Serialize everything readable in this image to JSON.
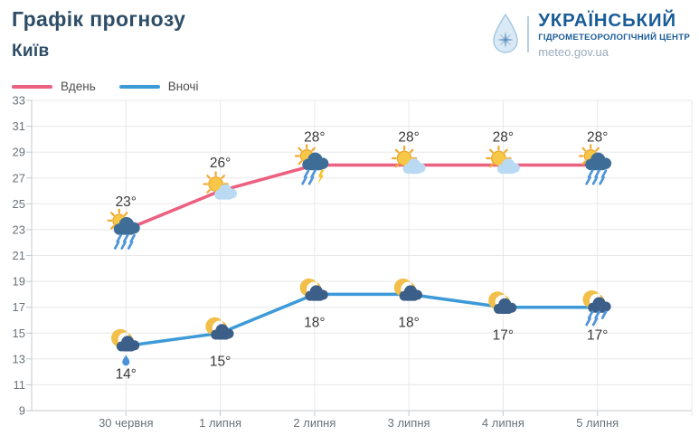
{
  "header": {
    "title": "Графік прогнозу",
    "subtitle": "Київ"
  },
  "logo": {
    "org_line1": "УКРАЇНСЬКИЙ",
    "org_line2": "ГІДРОМЕТЕОРОЛОГІЧНИЙ ЦЕНТР",
    "site": "meteo.gov.ua",
    "drop_icon": "water-drop-compass",
    "brand_color": "#1a5c97"
  },
  "legend": [
    {
      "label": "Вдень",
      "color": "#ec6080"
    },
    {
      "label": "Вночі",
      "color": "#3d9ad9"
    }
  ],
  "chart_data": {
    "type": "line",
    "title": "Графік прогнозу",
    "location": "Київ",
    "categories": [
      "30 червня",
      "1 липня",
      "2 липня",
      "3 липня",
      "4 липня",
      "5 липня"
    ],
    "series": [
      {
        "name": "Вдень",
        "color": "#ec6080",
        "values": [
          23,
          26,
          28,
          28,
          28,
          28
        ],
        "labels": [
          "23°",
          "26°",
          "28°",
          "28°",
          "28°",
          "28°"
        ],
        "icons": [
          "sun-rain-cloud",
          "sun-small-cloud",
          "sun-storm-cloud",
          "sun-small-cloud",
          "sun-small-cloud",
          "sun-rain-cloud"
        ],
        "label_position": "above"
      },
      {
        "name": "Вночі",
        "color": "#3d9ad9",
        "values": [
          14,
          15,
          18,
          18,
          17,
          17
        ],
        "labels": [
          "14°",
          "15°",
          "18°",
          "18°",
          "17°",
          "17°"
        ],
        "icons": [
          "moon-cloud-drop",
          "moon-cloud",
          "moon-cloud",
          "moon-cloud",
          "moon-cloud",
          "moon-cloud-rain"
        ],
        "label_position": "below"
      }
    ],
    "ylim": [
      9,
      33
    ],
    "ytick_step": 2,
    "yticks": [
      33,
      31,
      29,
      27,
      25,
      23,
      21,
      19,
      17,
      15,
      13,
      11,
      9
    ],
    "grid": true,
    "legend_position": "top-left"
  }
}
